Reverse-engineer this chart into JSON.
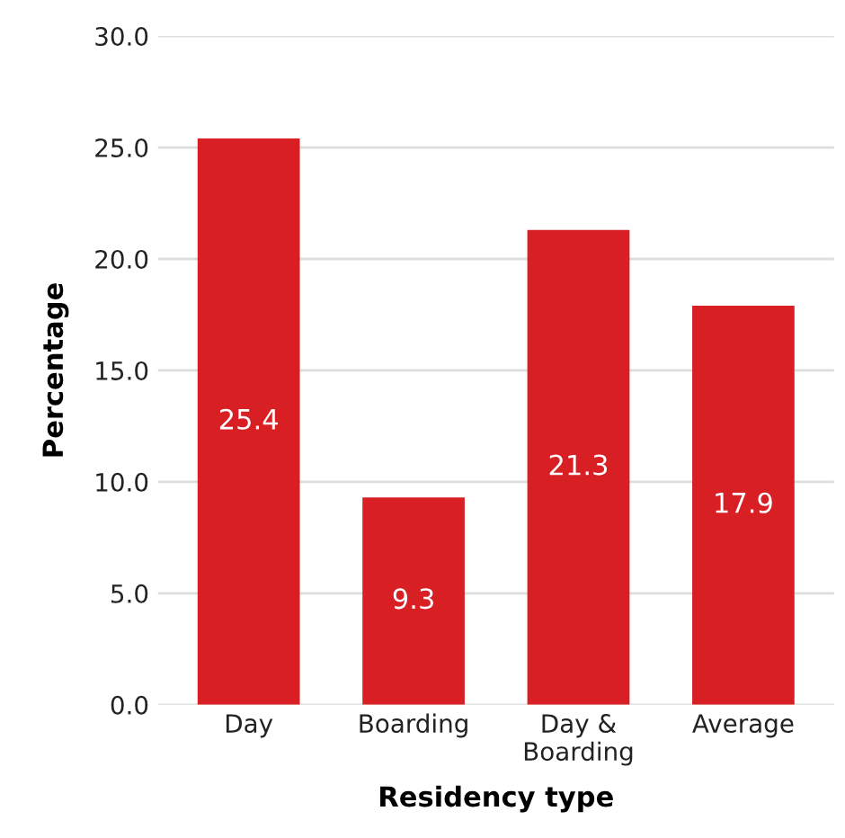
{
  "chart_data": {
    "type": "bar",
    "xlabel": "Residency type",
    "ylabel": "Percentage",
    "categories": [
      "Day",
      "Boarding",
      "Day & Boarding",
      "Average"
    ],
    "values": [
      25.4,
      9.3,
      21.3,
      17.9
    ],
    "color": "#d71f24",
    "ylim": [
      0,
      30
    ],
    "yticks": [
      {
        "value": 0,
        "label": "0.0"
      },
      {
        "value": 5,
        "label": "5.0"
      },
      {
        "value": 10,
        "label": "10.0"
      },
      {
        "value": 15,
        "label": "15.0"
      },
      {
        "value": 20,
        "label": "20.0"
      },
      {
        "value": 25,
        "label": "25.0"
      },
      {
        "value": 30,
        "label": "30.0"
      }
    ],
    "grid": "y",
    "data_labels": true,
    "legend": false
  }
}
